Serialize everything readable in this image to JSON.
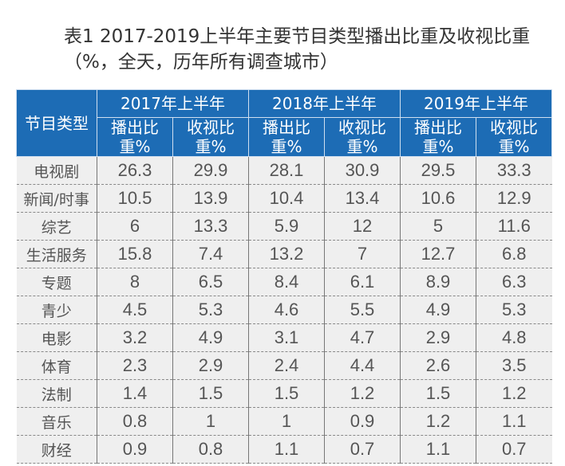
{
  "title": "表1  2017-2019上半年主要节目类型播出比重及收视比重（%，全天，历年所有调查城市）",
  "header": {
    "type_label": "节目类型",
    "years": [
      "2017年上半年",
      "2018年上半年",
      "2019年上半年"
    ],
    "sub": [
      "播出比重%",
      "收视比重%",
      "播出比重%",
      "收视比重%",
      "播出比重%",
      "收视比重%"
    ]
  },
  "rows": [
    {
      "label": "电视剧",
      "values": [
        "26.3",
        "29.9",
        "28.1",
        "30.9",
        "29.5",
        "33.3"
      ]
    },
    {
      "label": "新闻/时事",
      "values": [
        "10.5",
        "13.9",
        "10.4",
        "13.4",
        "10.6",
        "12.9"
      ]
    },
    {
      "label": "综艺",
      "values": [
        "6",
        "13.3",
        "5.9",
        "12",
        "5",
        "11.6"
      ]
    },
    {
      "label": "生活服务",
      "values": [
        "15.8",
        "7.4",
        "13.2",
        "7",
        "12.7",
        "6.8"
      ]
    },
    {
      "label": "专题",
      "values": [
        "8",
        "6.5",
        "8.4",
        "6.1",
        "8.9",
        "6.3"
      ]
    },
    {
      "label": "青少",
      "values": [
        "4.5",
        "5.3",
        "4.6",
        "5.5",
        "4.9",
        "5.3"
      ]
    },
    {
      "label": "电影",
      "values": [
        "3.2",
        "4.9",
        "3.1",
        "4.7",
        "2.9",
        "4.8"
      ]
    },
    {
      "label": "体育",
      "values": [
        "2.3",
        "2.9",
        "2.4",
        "4.4",
        "2.6",
        "3.5"
      ]
    },
    {
      "label": "法制",
      "values": [
        "1.4",
        "1.5",
        "1.5",
        "1.2",
        "1.5",
        "1.2"
      ]
    },
    {
      "label": "音乐",
      "values": [
        "0.8",
        "1",
        "1",
        "0.9",
        "1.2",
        "1.1"
      ]
    },
    {
      "label": "财经",
      "values": [
        "0.9",
        "0.8",
        "1.1",
        "0.7",
        "1.1",
        "0.7"
      ]
    }
  ]
}
